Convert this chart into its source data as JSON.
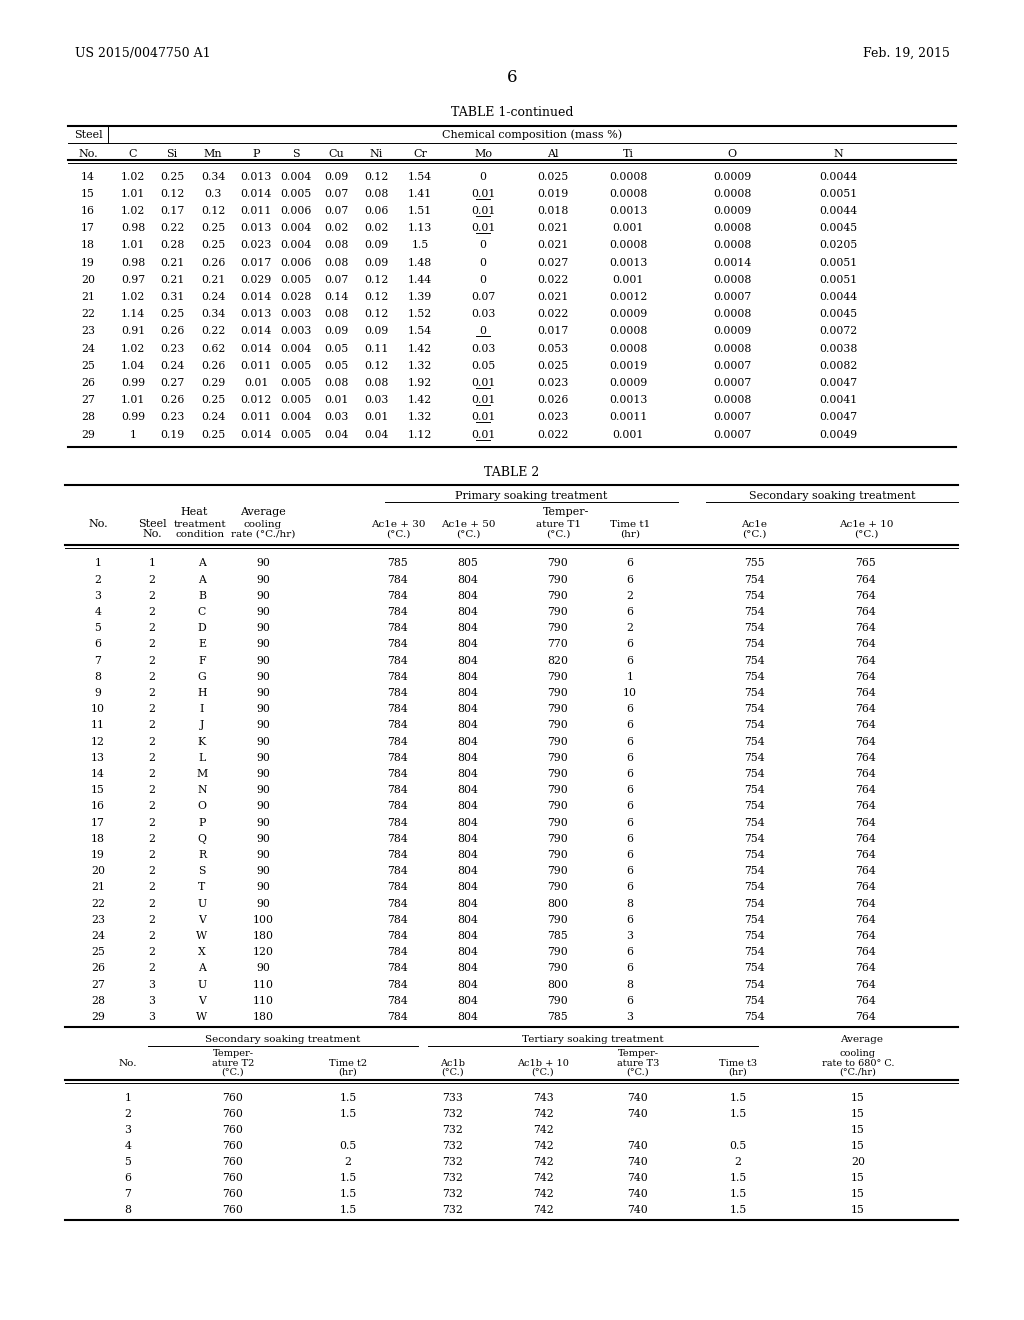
{
  "header_left": "US 2015/0047750 A1",
  "header_right": "Feb. 19, 2015",
  "page_number": "6",
  "table1_title": "TABLE 1-continued",
  "table1_header_row2": [
    "No.",
    "C",
    "Si",
    "Mn",
    "P",
    "S",
    "Cu",
    "Ni",
    "Cr",
    "Mo",
    "Al",
    "Ti",
    "O",
    "N"
  ],
  "table1_data": [
    [
      "14",
      "1.02",
      "0.25",
      "0.34",
      "0.013",
      "0.004",
      "0.09",
      "0.12",
      "1.54",
      "0",
      "0.025",
      "0.0008",
      "0.0009",
      "0.0044"
    ],
    [
      "15",
      "1.01",
      "0.12",
      "0.3",
      "0.014",
      "0.005",
      "0.07",
      "0.08",
      "1.41",
      "0.01",
      "0.019",
      "0.0008",
      "0.0008",
      "0.0051"
    ],
    [
      "16",
      "1.02",
      "0.17",
      "0.12",
      "0.011",
      "0.006",
      "0.07",
      "0.06",
      "1.51",
      "0.01",
      "0.018",
      "0.0013",
      "0.0009",
      "0.0044"
    ],
    [
      "17",
      "0.98",
      "0.22",
      "0.25",
      "0.013",
      "0.004",
      "0.02",
      "0.02",
      "1.13",
      "0.01",
      "0.021",
      "0.001",
      "0.0008",
      "0.0045"
    ],
    [
      "18",
      "1.01",
      "0.28",
      "0.25",
      "0.023",
      "0.004",
      "0.08",
      "0.09",
      "1.5",
      "0",
      "0.021",
      "0.0008",
      "0.0008",
      "0.0205"
    ],
    [
      "19",
      "0.98",
      "0.21",
      "0.26",
      "0.017",
      "0.006",
      "0.08",
      "0.09",
      "1.48",
      "0",
      "0.027",
      "0.0013",
      "0.0014",
      "0.0051"
    ],
    [
      "20",
      "0.97",
      "0.21",
      "0.21",
      "0.029",
      "0.005",
      "0.07",
      "0.12",
      "1.44",
      "0",
      "0.022",
      "0.001",
      "0.0008",
      "0.0051"
    ],
    [
      "21",
      "1.02",
      "0.31",
      "0.24",
      "0.014",
      "0.028",
      "0.14",
      "0.12",
      "1.39",
      "0.07",
      "0.021",
      "0.0012",
      "0.0007",
      "0.0044"
    ],
    [
      "22",
      "1.14",
      "0.25",
      "0.34",
      "0.013",
      "0.003",
      "0.08",
      "0.12",
      "1.52",
      "0.03",
      "0.022",
      "0.0009",
      "0.0008",
      "0.0045"
    ],
    [
      "23",
      "0.91",
      "0.26",
      "0.22",
      "0.014",
      "0.003",
      "0.09",
      "0.09",
      "1.54",
      "0",
      "0.017",
      "0.0008",
      "0.0009",
      "0.0072"
    ],
    [
      "24",
      "1.02",
      "0.23",
      "0.62",
      "0.014",
      "0.004",
      "0.05",
      "0.11",
      "1.42",
      "0.03",
      "0.053",
      "0.0008",
      "0.0008",
      "0.0038"
    ],
    [
      "25",
      "1.04",
      "0.24",
      "0.26",
      "0.011",
      "0.005",
      "0.05",
      "0.12",
      "1.32",
      "0.05",
      "0.025",
      "0.0019",
      "0.0007",
      "0.0082"
    ],
    [
      "26",
      "0.99",
      "0.27",
      "0.29",
      "0.01",
      "0.005",
      "0.08",
      "0.08",
      "1.92",
      "0.01",
      "0.023",
      "0.0009",
      "0.0007",
      "0.0047"
    ],
    [
      "27",
      "1.01",
      "0.26",
      "0.25",
      "0.012",
      "0.005",
      "0.01",
      "0.03",
      "1.42",
      "0.01",
      "0.026",
      "0.0013",
      "0.0008",
      "0.0041"
    ],
    [
      "28",
      "0.99",
      "0.23",
      "0.24",
      "0.011",
      "0.004",
      "0.03",
      "0.01",
      "1.32",
      "0.01",
      "0.023",
      "0.0011",
      "0.0007",
      "0.0047"
    ],
    [
      "29",
      "1",
      "0.19",
      "0.25",
      "0.014",
      "0.005",
      "0.04",
      "0.04",
      "1.12",
      "0.01",
      "0.022",
      "0.001",
      "0.0007",
      "0.0049"
    ]
  ],
  "table1_underlined_mo": [
    "15",
    "16",
    "17",
    "23",
    "26",
    "27",
    "28",
    "29"
  ],
  "table2_title": "TABLE 2",
  "table2_main_data": [
    [
      "1",
      "1",
      "A",
      "90",
      "785",
      "805",
      "790",
      "6",
      "755",
      "765"
    ],
    [
      "2",
      "2",
      "A",
      "90",
      "784",
      "804",
      "790",
      "6",
      "754",
      "764"
    ],
    [
      "3",
      "2",
      "B",
      "90",
      "784",
      "804",
      "790",
      "2",
      "754",
      "764"
    ],
    [
      "4",
      "2",
      "C",
      "90",
      "784",
      "804",
      "790",
      "6",
      "754",
      "764"
    ],
    [
      "5",
      "2",
      "D",
      "90",
      "784",
      "804",
      "790",
      "2",
      "754",
      "764"
    ],
    [
      "6",
      "2",
      "E",
      "90",
      "784",
      "804",
      "770",
      "6",
      "754",
      "764"
    ],
    [
      "7",
      "2",
      "F",
      "90",
      "784",
      "804",
      "820",
      "6",
      "754",
      "764"
    ],
    [
      "8",
      "2",
      "G",
      "90",
      "784",
      "804",
      "790",
      "1",
      "754",
      "764"
    ],
    [
      "9",
      "2",
      "H",
      "90",
      "784",
      "804",
      "790",
      "10",
      "754",
      "764"
    ],
    [
      "10",
      "2",
      "I",
      "90",
      "784",
      "804",
      "790",
      "6",
      "754",
      "764"
    ],
    [
      "11",
      "2",
      "J",
      "90",
      "784",
      "804",
      "790",
      "6",
      "754",
      "764"
    ],
    [
      "12",
      "2",
      "K",
      "90",
      "784",
      "804",
      "790",
      "6",
      "754",
      "764"
    ],
    [
      "13",
      "2",
      "L",
      "90",
      "784",
      "804",
      "790",
      "6",
      "754",
      "764"
    ],
    [
      "14",
      "2",
      "M",
      "90",
      "784",
      "804",
      "790",
      "6",
      "754",
      "764"
    ],
    [
      "15",
      "2",
      "N",
      "90",
      "784",
      "804",
      "790",
      "6",
      "754",
      "764"
    ],
    [
      "16",
      "2",
      "O",
      "90",
      "784",
      "804",
      "790",
      "6",
      "754",
      "764"
    ],
    [
      "17",
      "2",
      "P",
      "90",
      "784",
      "804",
      "790",
      "6",
      "754",
      "764"
    ],
    [
      "18",
      "2",
      "Q",
      "90",
      "784",
      "804",
      "790",
      "6",
      "754",
      "764"
    ],
    [
      "19",
      "2",
      "R",
      "90",
      "784",
      "804",
      "790",
      "6",
      "754",
      "764"
    ],
    [
      "20",
      "2",
      "S",
      "90",
      "784",
      "804",
      "790",
      "6",
      "754",
      "764"
    ],
    [
      "21",
      "2",
      "T",
      "90",
      "784",
      "804",
      "790",
      "6",
      "754",
      "764"
    ],
    [
      "22",
      "2",
      "U",
      "90",
      "784",
      "804",
      "800",
      "8",
      "754",
      "764"
    ],
    [
      "23",
      "2",
      "V",
      "100",
      "784",
      "804",
      "790",
      "6",
      "754",
      "764"
    ],
    [
      "24",
      "2",
      "W",
      "180",
      "784",
      "804",
      "785",
      "3",
      "754",
      "764"
    ],
    [
      "25",
      "2",
      "X",
      "120",
      "784",
      "804",
      "790",
      "6",
      "754",
      "764"
    ],
    [
      "26",
      "2",
      "A",
      "90",
      "784",
      "804",
      "790",
      "6",
      "754",
      "764"
    ],
    [
      "27",
      "3",
      "U",
      "110",
      "784",
      "804",
      "800",
      "8",
      "754",
      "764"
    ],
    [
      "28",
      "3",
      "V",
      "110",
      "784",
      "804",
      "790",
      "6",
      "754",
      "764"
    ],
    [
      "29",
      "3",
      "W",
      "180",
      "784",
      "804",
      "785",
      "3",
      "754",
      "764"
    ]
  ],
  "table2_bottom_data": [
    [
      "1",
      "760",
      "1.5",
      "733",
      "743",
      "740",
      "1.5",
      "15"
    ],
    [
      "2",
      "760",
      "1.5",
      "732",
      "742",
      "740",
      "1.5",
      "15"
    ],
    [
      "3",
      "760",
      "",
      "732",
      "742",
      "",
      "",
      "15"
    ],
    [
      "4",
      "760",
      "0.5",
      "732",
      "742",
      "740",
      "0.5",
      "15"
    ],
    [
      "5",
      "760",
      "2",
      "732",
      "742",
      "740",
      "2",
      "20"
    ],
    [
      "6",
      "760",
      "1.5",
      "732",
      "742",
      "740",
      "1.5",
      "15"
    ],
    [
      "7",
      "760",
      "1.5",
      "732",
      "742",
      "740",
      "1.5",
      "15"
    ],
    [
      "8",
      "760",
      "1.5",
      "732",
      "742",
      "740",
      "1.5",
      "15"
    ]
  ]
}
